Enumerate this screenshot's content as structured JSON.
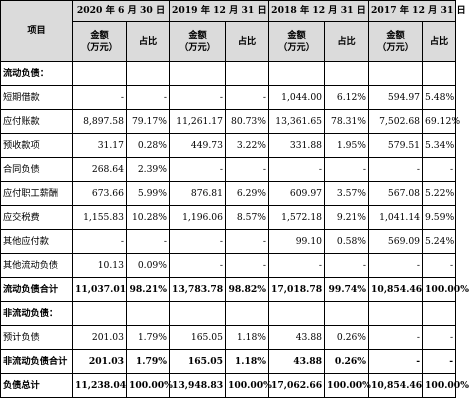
{
  "header": {
    "item_label": "项目",
    "periods": [
      "2020 年 6 月 30 日",
      "2019 年 12 月 31 日",
      "2018 年 12 月 31 日",
      "2017 年 12 月 31 日"
    ],
    "amount_label_line1": "金额",
    "amount_label_line2": "（万元）",
    "ratio_label": "占比"
  },
  "sections": {
    "current": "流动负债：",
    "noncurrent": "非流动负债："
  },
  "rows": [
    {
      "label": "短期借款",
      "v": [
        "-",
        "-",
        "-",
        "-",
        "1,044.00",
        "6.12%",
        "594.97",
        "5.48%"
      ]
    },
    {
      "label": "应付账款",
      "v": [
        "8,897.58",
        "79.17%",
        "11,261.17",
        "80.73%",
        "13,361.65",
        "78.31%",
        "7,502.68",
        "69.12%"
      ]
    },
    {
      "label": "预收款项",
      "v": [
        "31.17",
        "0.28%",
        "449.73",
        "3.22%",
        "331.88",
        "1.95%",
        "579.51",
        "5.34%"
      ]
    },
    {
      "label": "合同负债",
      "v": [
        "268.64",
        "2.39%",
        "-",
        "-",
        "-",
        "-",
        "-",
        "-"
      ]
    },
    {
      "label": "应付职工薪酬",
      "v": [
        "673.66",
        "5.99%",
        "876.81",
        "6.29%",
        "609.97",
        "3.57%",
        "567.08",
        "5.22%"
      ]
    },
    {
      "label": "应交税费",
      "v": [
        "1,155.83",
        "10.28%",
        "1,196.06",
        "8.57%",
        "1,572.18",
        "9.21%",
        "1,041.14",
        "9.59%"
      ]
    },
    {
      "label": "其他应付款",
      "v": [
        "-",
        "-",
        "-",
        "-",
        "99.10",
        "0.58%",
        "569.09",
        "5.24%"
      ]
    },
    {
      "label": "其他流动负债",
      "v": [
        "10.13",
        "0.09%",
        "-",
        "-",
        "-",
        "-",
        "-",
        "-"
      ]
    },
    {
      "label": "流动负债合计",
      "v": [
        "11,037.01",
        "98.21%",
        "13,783.78",
        "98.82%",
        "17,018.78",
        "99.74%",
        "10,854.46",
        "100.00%"
      ]
    },
    {
      "label": "预计负债",
      "v": [
        "201.03",
        "1.79%",
        "165.05",
        "1.18%",
        "43.88",
        "0.26%",
        "-",
        "-"
      ]
    },
    {
      "label": "非流动负债合计",
      "v": [
        "201.03",
        "1.79%",
        "165.05",
        "1.18%",
        "43.88",
        "0.26%",
        "-",
        "-"
      ]
    },
    {
      "label": "负债总计",
      "v": [
        "11,238.04",
        "100.00%",
        "13,948.83",
        "100.00%",
        "17,062.66",
        "100.00%",
        "10,854.46",
        "100.00%"
      ]
    }
  ]
}
